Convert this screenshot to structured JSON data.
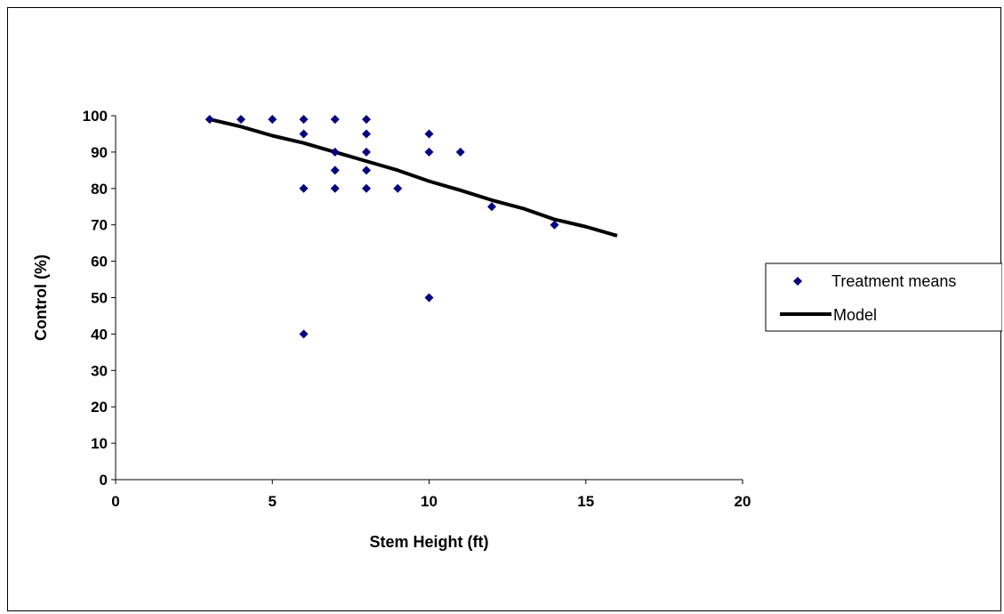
{
  "chart_data": {
    "type": "scatter",
    "xlabel": "Stem Height (ft)",
    "ylabel": "Control (%)",
    "xlim": [
      0,
      20
    ],
    "ylim": [
      0,
      100
    ],
    "x_ticks": [
      0,
      5,
      10,
      15,
      20
    ],
    "y_ticks": [
      0,
      10,
      20,
      30,
      40,
      50,
      60,
      70,
      80,
      90,
      100
    ],
    "grid": false,
    "legend_position": "right",
    "series": [
      {
        "name": "Treatment means",
        "kind": "scatter",
        "marker": "diamond",
        "color": "#000080",
        "points": [
          [
            3,
            99
          ],
          [
            4,
            99
          ],
          [
            5,
            99
          ],
          [
            6,
            99
          ],
          [
            7,
            99
          ],
          [
            8,
            99
          ],
          [
            6,
            95
          ],
          [
            8,
            95
          ],
          [
            10,
            95
          ],
          [
            7,
            90
          ],
          [
            8,
            90
          ],
          [
            10,
            90
          ],
          [
            11,
            90
          ],
          [
            7,
            85
          ],
          [
            8,
            85
          ],
          [
            6,
            80
          ],
          [
            7,
            80
          ],
          [
            8,
            80
          ],
          [
            9,
            80
          ],
          [
            12,
            75
          ],
          [
            14,
            70
          ],
          [
            10,
            50
          ],
          [
            6,
            40
          ]
        ]
      },
      {
        "name": "Model",
        "kind": "line",
        "color": "#000000",
        "points": [
          [
            3,
            99
          ],
          [
            4,
            97
          ],
          [
            5,
            94.5
          ],
          [
            6,
            92.5
          ],
          [
            7,
            90
          ],
          [
            8,
            87.5
          ],
          [
            9,
            85
          ],
          [
            10,
            82
          ],
          [
            11,
            79.5
          ],
          [
            12,
            76.8
          ],
          [
            13,
            74.5
          ],
          [
            14,
            71.5
          ],
          [
            15,
            69.5
          ],
          [
            16,
            67
          ]
        ]
      }
    ]
  }
}
